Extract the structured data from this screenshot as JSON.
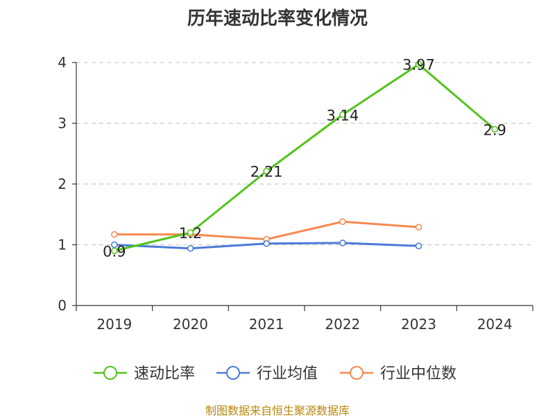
{
  "chart_data": {
    "type": "line",
    "title": "历年速动比率变化情况",
    "categories": [
      "2019",
      "2020",
      "2021",
      "2022",
      "2023",
      "2024"
    ],
    "ylim": [
      0,
      4
    ],
    "yticks": [
      0,
      1,
      2,
      3,
      4
    ],
    "grid": true,
    "legend_position": "bottom",
    "series": [
      {
        "name": "速动比率",
        "color": "#52c41a",
        "values": [
          0.9,
          1.2,
          2.21,
          3.14,
          3.97,
          2.9
        ],
        "labels": [
          "0.9",
          "1.2",
          "2.21",
          "3.14",
          "3.97",
          "2.9"
        ]
      },
      {
        "name": "行业均值",
        "color": "#4a7bd6",
        "values": [
          1.0,
          0.94,
          1.02,
          1.03,
          0.98,
          null
        ]
      },
      {
        "name": "行业中位数",
        "color": "#f5894f",
        "values": [
          1.17,
          1.17,
          1.09,
          1.38,
          1.29,
          null
        ]
      }
    ]
  },
  "source_note": "制图数据来自恒生聚源数据库"
}
